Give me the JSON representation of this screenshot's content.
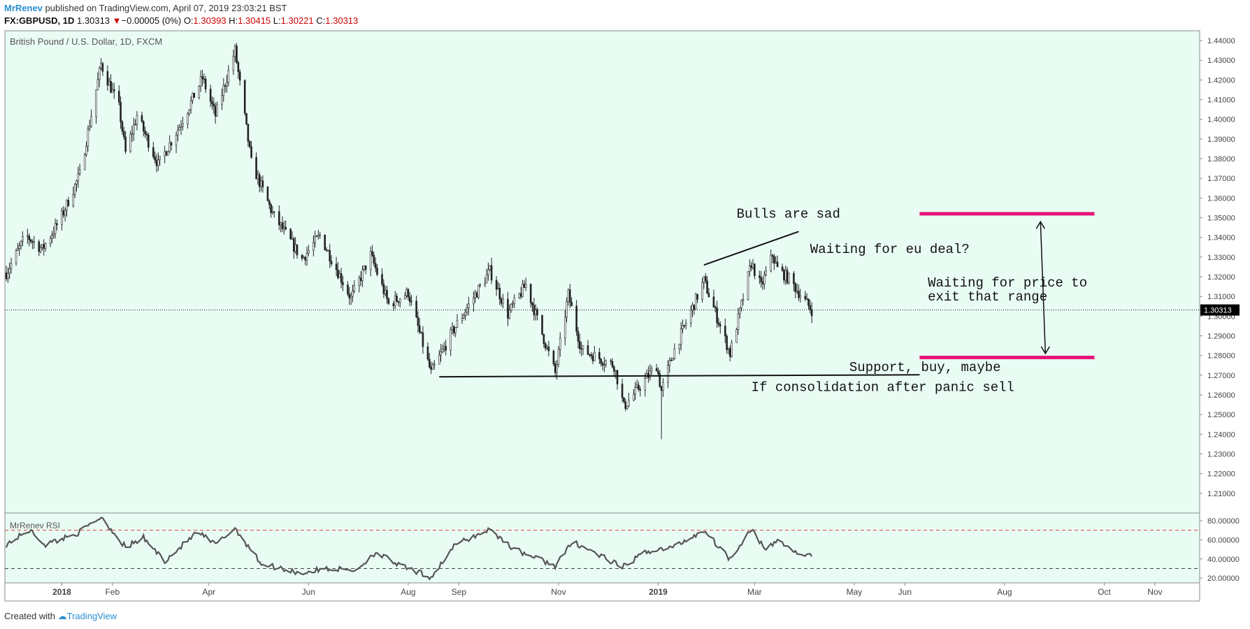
{
  "header": {
    "author": "MrRenev",
    "published_text": "published on TradingView.com, April 07, 2019 23:03:21 BST",
    "symbol": "FX:GBPUSD, 1D",
    "last": "1.30313",
    "change": "−0.00005 (0%)",
    "o_label": "O:",
    "o_value": "1.30393",
    "h_label": "H:",
    "h_value": "1.30415",
    "l_label": "L:",
    "l_value": "1.30221",
    "c_label": "C:",
    "c_value": "1.30313"
  },
  "footer": {
    "created_with": "Created with",
    "brand": "TradingView"
  },
  "colors": {
    "background": "#e9fcf3",
    "candle": "#222222",
    "zone": "#e8157a",
    "rsi_line": "#555555",
    "rsi_upper": "#e03c3c",
    "last_price_bg": "#000000"
  },
  "chart_data": {
    "type": "candlestick",
    "title": "British Pound / U.S. Dollar, 1D, FXCM",
    "last_price": 1.30313,
    "last_price_label": "1.30313",
    "ylim": [
      1.2,
      1.445
    ],
    "y_ticks": [
      1.21,
      1.22,
      1.23,
      1.24,
      1.25,
      1.26,
      1.27,
      1.28,
      1.29,
      1.3,
      1.31,
      1.32,
      1.33,
      1.34,
      1.35,
      1.36,
      1.37,
      1.38,
      1.39,
      1.4,
      1.41,
      1.42,
      1.43,
      1.44
    ],
    "y_tick_labels": [
      "1.21000",
      "1.22000",
      "1.23000",
      "1.24000",
      "1.25000",
      "1.26000",
      "1.27000",
      "1.28000",
      "1.29000",
      "1.30000",
      "1.31000",
      "1.32000",
      "1.33000",
      "1.34000",
      "1.35000",
      "1.36000",
      "1.37000",
      "1.38000",
      "1.39000",
      "1.40000",
      "1.41000",
      "1.42000",
      "1.43000",
      "1.44000"
    ],
    "x_ticks": [
      {
        "label": "2018",
        "date": "2018-01-01",
        "bold": true
      },
      {
        "label": "Feb",
        "date": "2018-02-01"
      },
      {
        "label": "Apr",
        "date": "2018-04-01"
      },
      {
        "label": "Jun",
        "date": "2018-06-01"
      },
      {
        "label": "Aug",
        "date": "2018-08-01"
      },
      {
        "label": "Sep",
        "date": "2018-09-01"
      },
      {
        "label": "Nov",
        "date": "2018-11-01"
      },
      {
        "label": "2019",
        "date": "2019-01-01",
        "bold": true
      },
      {
        "label": "Mar",
        "date": "2019-03-01"
      },
      {
        "label": "May",
        "date": "2019-05-01"
      },
      {
        "label": "Jun",
        "date": "2019-06-01"
      },
      {
        "label": "Aug",
        "date": "2019-08-01"
      },
      {
        "label": "Oct",
        "date": "2019-10-01"
      },
      {
        "label": "Nov",
        "date": "2019-11-01"
      }
    ],
    "price_path": [
      [
        "2017-11-28",
        1.322
      ],
      [
        "2017-12-10",
        1.341
      ],
      [
        "2017-12-20",
        1.334
      ],
      [
        "2017-12-31",
        1.349
      ],
      [
        "2018-01-12",
        1.372
      ],
      [
        "2018-01-25",
        1.428
      ],
      [
        "2018-02-05",
        1.406
      ],
      [
        "2018-02-09",
        1.383
      ],
      [
        "2018-02-16",
        1.402
      ],
      [
        "2018-03-01",
        1.377
      ],
      [
        "2018-03-15",
        1.398
      ],
      [
        "2018-03-28",
        1.421
      ],
      [
        "2018-04-05",
        1.402
      ],
      [
        "2018-04-17",
        1.435
      ],
      [
        "2018-04-27",
        1.378
      ],
      [
        "2018-05-10",
        1.352
      ],
      [
        "2018-05-28",
        1.329
      ],
      [
        "2018-06-08",
        1.341
      ],
      [
        "2018-06-27",
        1.309
      ],
      [
        "2018-07-09",
        1.331
      ],
      [
        "2018-07-20",
        1.306
      ],
      [
        "2018-08-01",
        1.312
      ],
      [
        "2018-08-15",
        1.271
      ],
      [
        "2018-08-28",
        1.292
      ],
      [
        "2018-09-20",
        1.323
      ],
      [
        "2018-10-01",
        1.301
      ],
      [
        "2018-10-12",
        1.316
      ],
      [
        "2018-10-30",
        1.271
      ],
      [
        "2018-11-07",
        1.311
      ],
      [
        "2018-11-15",
        1.283
      ],
      [
        "2018-12-05",
        1.275
      ],
      [
        "2018-12-11",
        1.254
      ],
      [
        "2018-12-31",
        1.275
      ],
      [
        "2019-01-03",
        1.262
      ],
      [
        "2019-01-10",
        1.281
      ],
      [
        "2019-01-29",
        1.318
      ],
      [
        "2019-02-14",
        1.281
      ],
      [
        "2019-02-27",
        1.327
      ],
      [
        "2019-03-05",
        1.315
      ],
      [
        "2019-03-12",
        1.331
      ],
      [
        "2019-03-15",
        1.324
      ],
      [
        "2019-03-22",
        1.319
      ],
      [
        "2019-04-05",
        1.303
      ]
    ],
    "annotations": [
      {
        "text": "Bulls are sad",
        "date": "2019-02-18",
        "price": 1.35
      },
      {
        "text": "Waiting for eu deal?",
        "date": "2019-04-04",
        "price": 1.332
      },
      {
        "text": "Waiting for price to",
        "date": "2019-06-15",
        "price": 1.315
      },
      {
        "text": "exit that range",
        "date": "2019-06-15",
        "price": 1.308
      },
      {
        "text": "Support, buy, maybe",
        "date": "2019-04-28",
        "price": 1.272
      },
      {
        "text": "If consolidation after panic sell",
        "date": "2019-02-27",
        "price": 1.262
      }
    ],
    "trendlines": [
      {
        "name": "support",
        "from": [
          "2018-08-20",
          1.2692
        ],
        "to": [
          "2019-06-10",
          1.2702
        ]
      },
      {
        "name": "wedge",
        "from": [
          "2019-01-29",
          1.326
        ],
        "to": [
          "2019-03-28",
          1.343
        ]
      }
    ],
    "zones": [
      {
        "name": "resistance",
        "price": 1.352,
        "from": "2019-06-10",
        "to": "2019-09-25"
      },
      {
        "name": "support-zone",
        "price": 1.279,
        "from": "2019-06-10",
        "to": "2019-09-25"
      }
    ],
    "arrow": {
      "from": [
        "2019-08-23",
        1.348
      ],
      "to": [
        "2019-08-26",
        1.281
      ]
    },
    "rsi": {
      "title": "MrRenev RSI",
      "ylim": [
        15,
        88
      ],
      "levels": [
        70,
        30
      ],
      "y_tick_labels": [
        "80.00000",
        "60.00000",
        "40.00000",
        "20.00000"
      ],
      "y_ticks": [
        80,
        60,
        40,
        20
      ],
      "path": [
        [
          "2017-11-28",
          55
        ],
        [
          "2017-12-12",
          70
        ],
        [
          "2017-12-22",
          55
        ],
        [
          "2018-01-12",
          68
        ],
        [
          "2018-01-25",
          84
        ],
        [
          "2018-02-09",
          52
        ],
        [
          "2018-02-20",
          62
        ],
        [
          "2018-03-05",
          38
        ],
        [
          "2018-03-25",
          68
        ],
        [
          "2018-04-05",
          55
        ],
        [
          "2018-04-17",
          72
        ],
        [
          "2018-05-03",
          35
        ],
        [
          "2018-05-28",
          25
        ],
        [
          "2018-06-12",
          30
        ],
        [
          "2018-06-30",
          28
        ],
        [
          "2018-07-12",
          47
        ],
        [
          "2018-07-28",
          32
        ],
        [
          "2018-08-15",
          21
        ],
        [
          "2018-08-30",
          55
        ],
        [
          "2018-09-20",
          71
        ],
        [
          "2018-10-05",
          50
        ],
        [
          "2018-10-30",
          33
        ],
        [
          "2018-11-10",
          58
        ],
        [
          "2018-11-25",
          45
        ],
        [
          "2018-12-10",
          31
        ],
        [
          "2018-12-25",
          48
        ],
        [
          "2019-01-10",
          52
        ],
        [
          "2019-01-29",
          70
        ],
        [
          "2019-02-14",
          40
        ],
        [
          "2019-02-27",
          72
        ],
        [
          "2019-03-08",
          48
        ],
        [
          "2019-03-15",
          60
        ],
        [
          "2019-03-28",
          45
        ],
        [
          "2019-04-05",
          43
        ]
      ]
    }
  }
}
